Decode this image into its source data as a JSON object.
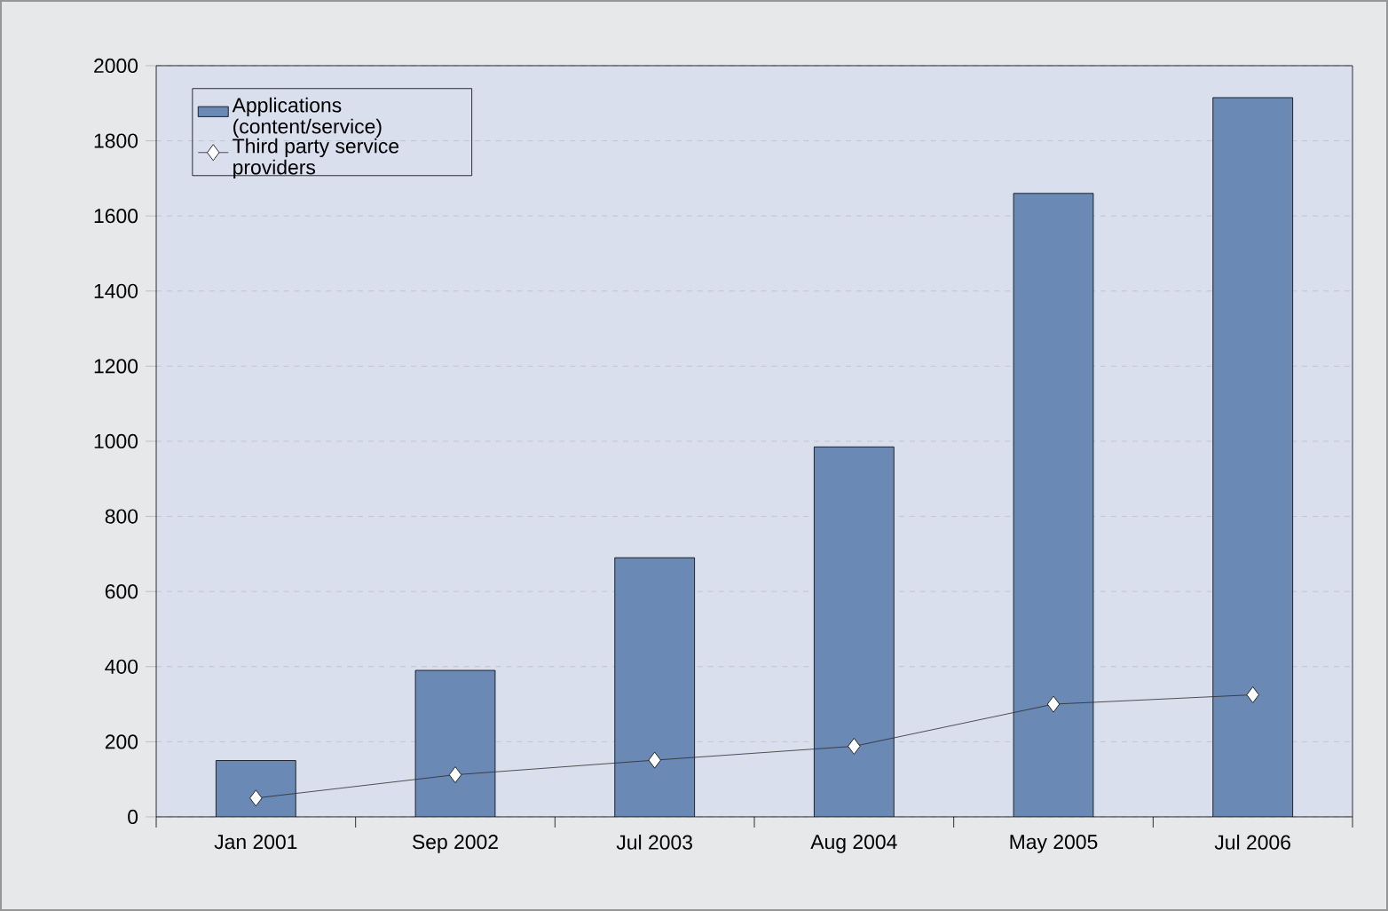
{
  "chart_data": {
    "type": "bar",
    "categories": [
      "Jan 2001",
      "Sep 2002",
      "Jul 2003",
      "Aug 2004",
      "May 2005",
      "Jul 2006"
    ],
    "series": [
      {
        "name": "Applications (content/service)",
        "color": "#6a8ab5",
        "values": [
          150,
          390,
          690,
          985,
          1660,
          1915
        ]
      },
      {
        "name": "Third party service providers",
        "type": "line",
        "color": "#2b2b2b",
        "values": [
          50,
          112,
          151,
          188,
          300,
          325
        ]
      }
    ],
    "ylim": [
      0,
      2000
    ],
    "yticks": [
      0,
      200,
      400,
      600,
      800,
      1000,
      1200,
      1400,
      1600,
      1800,
      2000
    ],
    "grid": "y",
    "legend": "top left",
    "marker": "diamond",
    "line_style": "solid"
  }
}
